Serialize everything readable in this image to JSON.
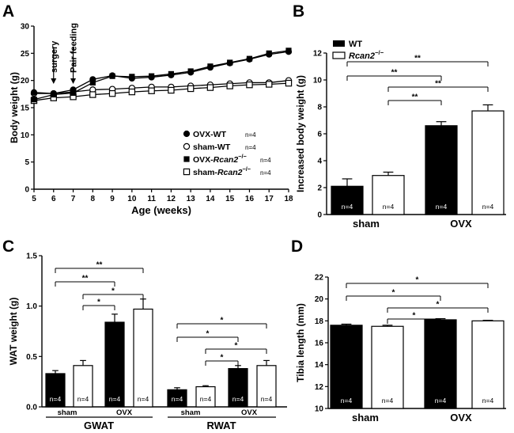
{
  "chart_data": [
    {
      "panel": "A",
      "type": "line",
      "xlabel": "Age (weeks)",
      "ylabel": "Body weight (g)",
      "xlim": [
        5,
        18
      ],
      "ylim": [
        0,
        30
      ],
      "xticks": [
        5,
        6,
        7,
        8,
        9,
        10,
        11,
        12,
        13,
        14,
        15,
        16,
        17,
        18
      ],
      "yticks": [
        0,
        5,
        10,
        15,
        20,
        25,
        30
      ],
      "x": [
        5,
        6,
        7,
        8,
        9,
        10,
        11,
        12,
        13,
        14,
        15,
        16,
        17,
        18
      ],
      "annotations": [
        {
          "text": "surgery",
          "x": 6
        },
        {
          "text": "Pair feeding",
          "x": 7
        }
      ],
      "series": [
        {
          "name": "OVX-WT",
          "n": "n=4",
          "marker": "filled-circle",
          "values": [
            17.8,
            17.6,
            18.3,
            20.2,
            20.9,
            20.4,
            20.6,
            21.0,
            21.5,
            22.4,
            23.2,
            23.9,
            24.8,
            25.3
          ]
        },
        {
          "name": "sham-WT",
          "n": "n=4",
          "marker": "open-circle",
          "values": [
            17.6,
            17.6,
            17.9,
            18.3,
            18.4,
            18.6,
            18.8,
            18.8,
            19.0,
            19.2,
            19.4,
            19.6,
            19.6,
            20.0
          ]
        },
        {
          "name": "OVX-",
          "name_italic": "Rcan2",
          "name_sup": "−/−",
          "n": "n=4",
          "marker": "filled-square",
          "values": [
            16.5,
            17.4,
            17.7,
            19.6,
            20.8,
            20.7,
            20.8,
            21.2,
            21.7,
            22.6,
            23.3,
            24.0,
            25.0,
            25.5
          ]
        },
        {
          "name": "sham-",
          "name_italic": "Rcan2",
          "name_sup": "−/−",
          "n": "n=4",
          "marker": "open-square",
          "values": [
            16.3,
            16.8,
            17.0,
            17.4,
            17.6,
            17.9,
            18.1,
            18.2,
            18.5,
            18.7,
            19.0,
            19.2,
            19.3,
            19.5
          ]
        }
      ]
    },
    {
      "panel": "B",
      "type": "bar",
      "ylabel": "Increased body weight (g)",
      "ylim": [
        0,
        12
      ],
      "yticks": [
        0,
        2,
        4,
        6,
        8,
        10,
        12
      ],
      "groups": [
        "sham",
        "OVX"
      ],
      "legend": [
        {
          "name": "WT",
          "fill": "#000000"
        },
        {
          "name": "",
          "name_italic": "Rcan2",
          "name_sup": "−/−",
          "fill": "#ffffff"
        }
      ],
      "bars": [
        {
          "group": "sham",
          "genotype": "WT",
          "value": 2.1,
          "err": 0.55,
          "n": "n=4"
        },
        {
          "group": "sham",
          "genotype": "Rcan2-/-",
          "value": 2.9,
          "err": 0.25,
          "n": "n=4"
        },
        {
          "group": "OVX",
          "genotype": "WT",
          "value": 6.6,
          "err": 0.3,
          "n": "n=4"
        },
        {
          "group": "OVX",
          "genotype": "Rcan2-/-",
          "value": 7.7,
          "err": 0.45,
          "n": "n=4"
        }
      ],
      "brackets": [
        {
          "from": 0,
          "to": 3,
          "label": "**"
        },
        {
          "from": 0,
          "to": 2,
          "label": "**"
        },
        {
          "from": 1,
          "to": 3,
          "label": "**"
        },
        {
          "from": 1,
          "to": 2,
          "label": "**"
        }
      ]
    },
    {
      "panel": "C",
      "type": "bar",
      "ylabel": "WAT weight (g)",
      "ylim": [
        0,
        1.5
      ],
      "yticks": [
        0.0,
        0.5,
        1.0,
        1.5
      ],
      "ytick_labels": [
        "0.0",
        "0.5",
        "1.0",
        "1.5"
      ],
      "tissues": [
        "GWAT",
        "RWAT"
      ],
      "subgroups": [
        "sham",
        "OVX"
      ],
      "bars": [
        {
          "tissue": "GWAT",
          "group": "sham",
          "genotype": "WT",
          "value": 0.33,
          "err": 0.03,
          "n": "n=4"
        },
        {
          "tissue": "GWAT",
          "group": "sham",
          "genotype": "Rcan2-/-",
          "value": 0.41,
          "err": 0.05,
          "n": "n=4"
        },
        {
          "tissue": "GWAT",
          "group": "OVX",
          "genotype": "WT",
          "value": 0.84,
          "err": 0.08,
          "n": "n=4"
        },
        {
          "tissue": "GWAT",
          "group": "OVX",
          "genotype": "Rcan2-/-",
          "value": 0.97,
          "err": 0.1,
          "n": "n=4"
        },
        {
          "tissue": "RWAT",
          "group": "sham",
          "genotype": "WT",
          "value": 0.17,
          "err": 0.02,
          "n": "n=4"
        },
        {
          "tissue": "RWAT",
          "group": "sham",
          "genotype": "Rcan2-/-",
          "value": 0.2,
          "err": 0.01,
          "n": "n=4"
        },
        {
          "tissue": "RWAT",
          "group": "OVX",
          "genotype": "WT",
          "value": 0.38,
          "err": 0.03,
          "n": "n=4"
        },
        {
          "tissue": "RWAT",
          "group": "OVX",
          "genotype": "Rcan2-/-",
          "value": 0.41,
          "err": 0.05,
          "n": "n=4"
        }
      ],
      "brackets": [
        {
          "from": 0,
          "to": 3,
          "label": "**"
        },
        {
          "from": 0,
          "to": 2,
          "label": "**"
        },
        {
          "from": 1,
          "to": 3,
          "label": "*"
        },
        {
          "from": 1,
          "to": 2,
          "label": "*"
        },
        {
          "from": 4,
          "to": 7,
          "label": "*"
        },
        {
          "from": 4,
          "to": 6,
          "label": "*"
        },
        {
          "from": 5,
          "to": 7,
          "label": "*"
        },
        {
          "from": 5,
          "to": 6,
          "label": "*"
        }
      ]
    },
    {
      "panel": "D",
      "type": "bar",
      "ylabel": "Tibia length (mm)",
      "ylim": [
        10,
        22
      ],
      "yticks": [
        10,
        12,
        14,
        16,
        18,
        20,
        22
      ],
      "groups": [
        "sham",
        "OVX"
      ],
      "bars": [
        {
          "group": "sham",
          "genotype": "WT",
          "value": 17.6,
          "err": 0.1,
          "n": "n=4"
        },
        {
          "group": "sham",
          "genotype": "Rcan2-/-",
          "value": 17.5,
          "err": 0.1,
          "n": "n=4"
        },
        {
          "group": "OVX",
          "genotype": "WT",
          "value": 18.1,
          "err": 0.1,
          "n": "n=4"
        },
        {
          "group": "OVX",
          "genotype": "Rcan2-/-",
          "value": 18.0,
          "err": 0.05,
          "n": "n=4"
        }
      ],
      "brackets": [
        {
          "from": 0,
          "to": 3,
          "label": "*"
        },
        {
          "from": 0,
          "to": 2,
          "label": "*"
        },
        {
          "from": 1,
          "to": 3,
          "label": "*"
        },
        {
          "from": 1,
          "to": 2,
          "label": "*"
        }
      ]
    }
  ]
}
